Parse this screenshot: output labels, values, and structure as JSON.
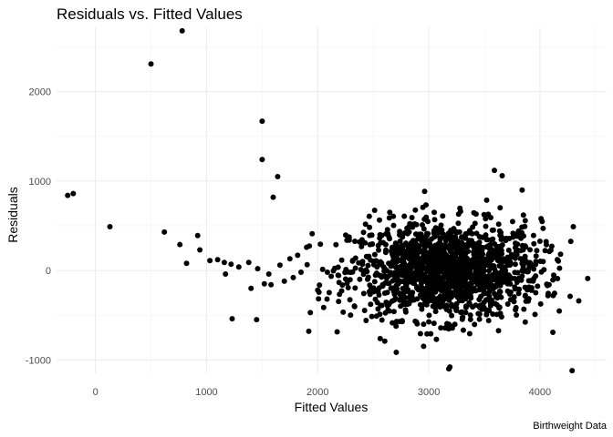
{
  "chart_data": {
    "type": "scatter",
    "title": "Residuals vs. Fitted Values",
    "xlabel": "Fitted Values",
    "ylabel": "Residuals",
    "caption": "Birthweight Data",
    "xlim": [
      -350,
      4600
    ],
    "ylim": [
      -1150,
      2720
    ],
    "x_ticks": [
      0,
      1000,
      2000,
      3000,
      4000
    ],
    "y_ticks": [
      -1000,
      0,
      1000,
      2000
    ],
    "grid": true,
    "legend": "none",
    "point_color": "#000000",
    "outliers": [
      {
        "x": -250,
        "y": 840
      },
      {
        "x": -200,
        "y": 860
      },
      {
        "x": 130,
        "y": 490
      },
      {
        "x": 500,
        "y": 2310
      },
      {
        "x": 780,
        "y": 2680
      },
      {
        "x": 620,
        "y": 430
      },
      {
        "x": 760,
        "y": 290
      },
      {
        "x": 820,
        "y": 80
      },
      {
        "x": 920,
        "y": 390
      },
      {
        "x": 940,
        "y": 230
      },
      {
        "x": 1030,
        "y": 110
      },
      {
        "x": 1100,
        "y": 120
      },
      {
        "x": 1160,
        "y": 90
      },
      {
        "x": 1170,
        "y": -40
      },
      {
        "x": 1220,
        "y": 70
      },
      {
        "x": 1230,
        "y": -540
      },
      {
        "x": 1290,
        "y": 40
      },
      {
        "x": 1380,
        "y": 90
      },
      {
        "x": 1400,
        "y": -200
      },
      {
        "x": 1450,
        "y": -550
      },
      {
        "x": 1460,
        "y": 20
      },
      {
        "x": 1500,
        "y": 1670
      },
      {
        "x": 1500,
        "y": 1240
      },
      {
        "x": 1520,
        "y": -150
      },
      {
        "x": 1560,
        "y": -40
      },
      {
        "x": 1580,
        "y": -160
      },
      {
        "x": 1600,
        "y": 820
      },
      {
        "x": 1640,
        "y": 1050
      },
      {
        "x": 1660,
        "y": 60
      },
      {
        "x": 1700,
        "y": -120
      },
      {
        "x": 1750,
        "y": 130
      },
      {
        "x": 1780,
        "y": -80
      },
      {
        "x": 1820,
        "y": 170
      },
      {
        "x": 1850,
        "y": -20
      },
      {
        "x": 1900,
        "y": 260
      },
      {
        "x": 1920,
        "y": -680
      },
      {
        "x": 1950,
        "y": 410
      },
      {
        "x": 2000,
        "y": -220
      },
      {
        "x": 3180,
        "y": -1100
      },
      {
        "x": 3190,
        "y": -1080
      },
      {
        "x": 4290,
        "y": -1120
      },
      {
        "x": 4430,
        "y": -90
      },
      {
        "x": 4350,
        "y": -340
      },
      {
        "x": 4300,
        "y": 490
      },
      {
        "x": 3590,
        "y": 1120
      },
      {
        "x": 3660,
        "y": 1060
      },
      {
        "x": 3840,
        "y": 900
      },
      {
        "x": 4010,
        "y": 580
      },
      {
        "x": 4120,
        "y": -280
      }
    ],
    "cluster": {
      "count": 1500,
      "x_center": 3150,
      "x_sd": 430,
      "y_sd": 270,
      "x_range": [
        1900,
        4300
      ],
      "y_range": [
        -950,
        1000
      ]
    }
  }
}
